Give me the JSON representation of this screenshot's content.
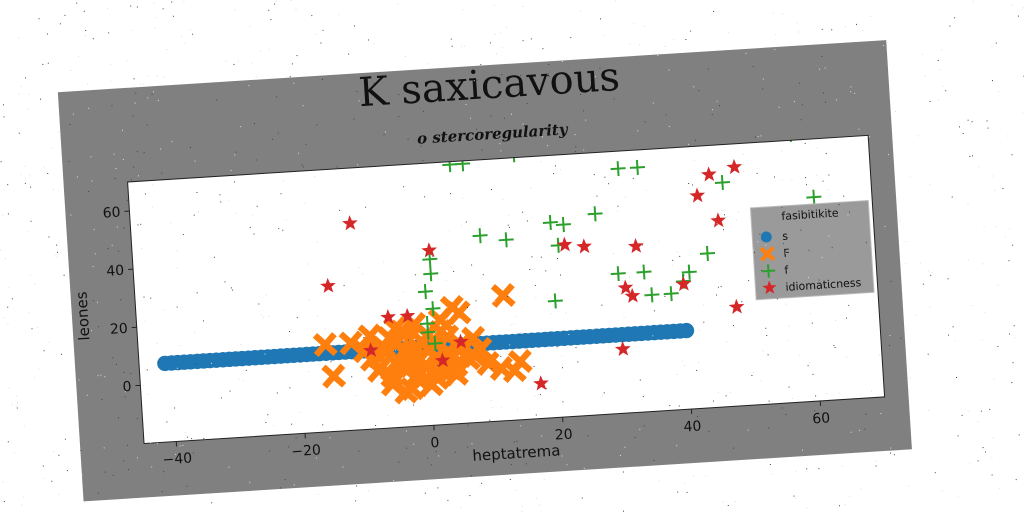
{
  "chart_data": {
    "type": "scatter",
    "title": "K saxicavous",
    "subtitle": "o stercoregularity",
    "xlabel": "heptatrema",
    "ylabel": "leones",
    "xlim": [
      -45,
      70
    ],
    "ylim": [
      -20,
      70
    ],
    "xticks": [
      -40,
      -20,
      0,
      20,
      40,
      60
    ],
    "yticks": [
      0,
      20,
      40,
      60
    ],
    "grid": false,
    "legend": {
      "title": "fasibitikite",
      "placement": "right"
    },
    "series": [
      {
        "name": "s",
        "marker": "circle",
        "color": "#1f77b4",
        "x": [
          -41,
          -40,
          -39,
          -38,
          -37,
          -36,
          -35,
          -34,
          -33,
          -32,
          -31,
          -30,
          -29,
          -28,
          -27,
          -26,
          -25,
          -24,
          -23,
          -22,
          -21,
          -20,
          -19,
          -18,
          -17,
          -16,
          -15,
          -14,
          -13,
          -12,
          -11,
          -10,
          -9,
          -8,
          -7,
          -6,
          -5,
          -4,
          -3,
          -2,
          -1,
          0,
          1,
          2,
          3,
          4,
          5,
          6,
          7,
          8,
          9,
          10,
          11,
          12,
          13,
          14,
          15,
          16,
          17,
          18,
          19,
          20,
          21,
          22,
          23,
          24,
          25,
          26,
          27,
          28,
          29,
          30,
          31,
          32,
          33,
          34,
          35,
          36,
          37,
          38,
          39,
          40
        ],
        "y": [
          7,
          7,
          7,
          7,
          7,
          7,
          7,
          7,
          7,
          7,
          7,
          7,
          7,
          7,
          7,
          7,
          7,
          7,
          7,
          7,
          7,
          7,
          7,
          7,
          7,
          7,
          7,
          7,
          7,
          7,
          7,
          7,
          7,
          7,
          7,
          7,
          7,
          7,
          7,
          7,
          7,
          7,
          7,
          7,
          7,
          7,
          7,
          7,
          7,
          7,
          7,
          7,
          7,
          7,
          7,
          7,
          7,
          7,
          7,
          7,
          7,
          7,
          7,
          7,
          7,
          7,
          7,
          7,
          7,
          7,
          7,
          7,
          7,
          7,
          7,
          7,
          7,
          7,
          7,
          7,
          7,
          7
        ]
      },
      {
        "name": "F",
        "marker": "x-filled",
        "color": "#ff7f0e",
        "x": [
          -12,
          -10,
          -9,
          -8,
          -7,
          -6,
          -5,
          -5,
          -4,
          -4,
          -3,
          -3,
          -2,
          -2,
          -1,
          -1,
          0,
          0,
          1,
          1,
          2,
          2,
          3,
          3,
          4,
          5,
          -6,
          -4,
          -2,
          0,
          2,
          4,
          6,
          -8,
          -6,
          -3,
          -1,
          1,
          3,
          5,
          7,
          -5,
          -2,
          2,
          -16,
          -15,
          9,
          11,
          13,
          14,
          4,
          5,
          -9,
          -7,
          -3,
          1,
          3,
          7,
          8,
          -4,
          -2,
          0,
          12
        ],
        "y": [
          10,
          7,
          12,
          5,
          8,
          11,
          3,
          9,
          6,
          13,
          2,
          10,
          7,
          4,
          9,
          0,
          11,
          6,
          3,
          8,
          12,
          1,
          5,
          10,
          -3,
          7,
          -5,
          -8,
          -4,
          -6,
          -2,
          0,
          2,
          0,
          -2,
          1,
          -3,
          -1,
          2,
          6,
          9,
          14,
          15,
          16,
          10,
          -1,
          0,
          -2,
          -3,
          0,
          20,
          18,
          4,
          6,
          -7,
          -4,
          -1,
          3,
          5,
          0,
          -2,
          -6,
          23
        ],
        "note": ""
      },
      {
        "name": "f",
        "marker": "plus",
        "color": "#2ca02c",
        "x": [
          1,
          1,
          1,
          0,
          0,
          0,
          1,
          5,
          7,
          9,
          13,
          15,
          20,
          20,
          21,
          22,
          27,
          30,
          31,
          33,
          34,
          34,
          35,
          38,
          40,
          41,
          44,
          47,
          49,
          53,
          55,
          58,
          59,
          61,
          62
        ],
        "y": [
          20,
          37,
          32,
          26,
          12,
          15,
          8,
          69,
          69,
          44,
          42,
          71,
          20,
          47,
          39,
          46,
          49,
          28,
          64,
          76,
          64,
          28,
          20,
          20,
          24,
          27,
          33,
          57,
          79,
          22,
          30,
          72,
          74,
          50,
          77
        ],
        "note": ""
      },
      {
        "name": "idiomaticness",
        "marker": "star",
        "color": "#d62728",
        "x": [
          -15,
          -11,
          -9,
          -6,
          -3,
          1,
          2,
          5,
          17,
          22,
          25,
          30,
          31,
          32,
          33,
          40,
          43,
          45,
          46,
          48,
          49
        ],
        "y": [
          30,
          51,
          7,
          18,
          18,
          40,
          2,
          8,
          -8,
          39,
          38,
          2,
          23,
          20,
          37,
          23,
          53,
          60,
          44,
          14,
          62
        ]
      }
    ]
  }
}
